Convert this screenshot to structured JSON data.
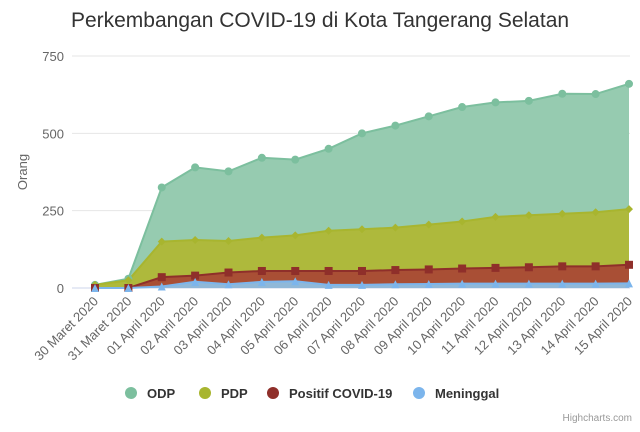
{
  "chart_data": {
    "type": "area",
    "title": "Perkembangan COVID-19 di Kota Tangerang Selatan",
    "ylabel": "Orang",
    "ylim": [
      0,
      750
    ],
    "yticks": [
      0,
      250,
      500,
      750
    ],
    "categories": [
      "30 Maret 2020",
      "31 Maret 2020",
      "01 April 2020",
      "02 April 2020",
      "03 April 2020",
      "04 April 2020",
      "05 April 2020",
      "06 April 2020",
      "07 April 2020",
      "08 April 2020",
      "09 April 2020",
      "10 April 2020",
      "11 April 2020",
      "12 April 2020",
      "13 April 2020",
      "14 April 2020",
      "15 April 2020"
    ],
    "grid": true,
    "legend_position": "bottom-center",
    "series": [
      {
        "name": "ODP",
        "color": "#7cbf9e",
        "fill": "#96cbb0",
        "marker": "circle",
        "values": [
          10,
          30,
          325,
          390,
          377,
          421,
          415,
          450,
          500,
          525,
          555,
          585,
          600,
          605,
          628,
          627,
          660
        ]
      },
      {
        "name": "PDP",
        "color": "#a8b52f",
        "fill": "#aeb93c",
        "marker": "diamond",
        "values": [
          10,
          25,
          150,
          155,
          152,
          163,
          170,
          185,
          190,
          195,
          205,
          215,
          230,
          235,
          240,
          245,
          255
        ]
      },
      {
        "name": "Positif COVID-19",
        "color": "#8f2f2a",
        "fill": "#a94f35",
        "marker": "square",
        "values": [
          0,
          0,
          35,
          40,
          50,
          55,
          55,
          55,
          55,
          58,
          60,
          63,
          65,
          67,
          70,
          70,
          75
        ]
      },
      {
        "name": "Meninggal",
        "color": "#7cb5ec",
        "fill": "#90b8d8",
        "marker": "triangle",
        "values": [
          0,
          0,
          5,
          20,
          12,
          20,
          22,
          10,
          10,
          12,
          13,
          14,
          14,
          14,
          14,
          14,
          15
        ]
      }
    ]
  },
  "credits": "Highcharts.com"
}
